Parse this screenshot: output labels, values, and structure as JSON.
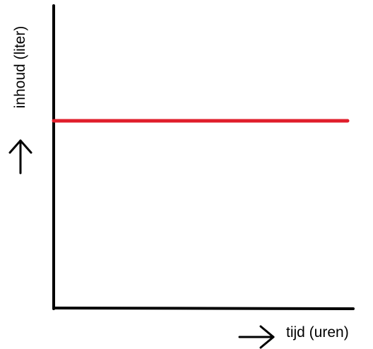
{
  "chart_data": {
    "type": "line",
    "title": "",
    "xlabel": "tijd (uren)",
    "ylabel": "inhoud (liter)",
    "grid": false,
    "legend": "none",
    "x": [
      0,
      1
    ],
    "series": [
      {
        "values": [
          0.62,
          0.62
        ],
        "color": "#e01e2b"
      }
    ],
    "xlim": [
      0,
      1
    ],
    "ylim": [
      0,
      1
    ],
    "axis_color": "#000000"
  }
}
